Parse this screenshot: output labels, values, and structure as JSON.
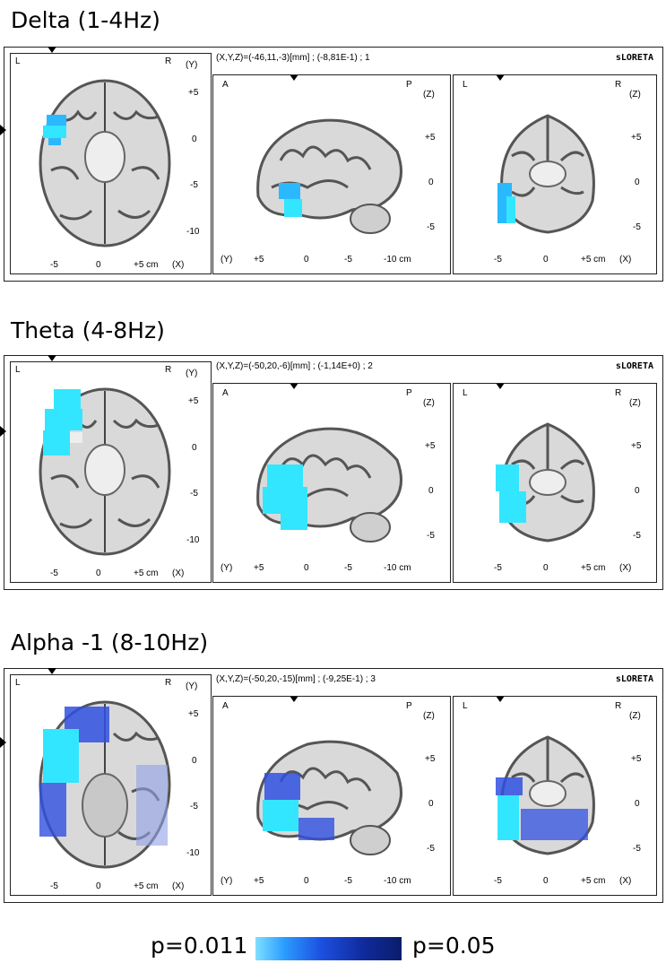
{
  "bands": [
    {
      "title": "Delta (1-4Hz)",
      "info": "(X,Y,Z)=(-46,11,-3)[mm] ; (-8,81E-1) ; 1",
      "brand": "sLORETA",
      "axial": {
        "L": "L",
        "R": "R",
        "axis_y": "(Y)",
        "yticks": [
          "+5",
          "0",
          "-5",
          "-10"
        ],
        "xticks": [
          "-5",
          "0",
          "+5 cm",
          "(X)"
        ]
      },
      "sagittal": {
        "A": "A",
        "P": "P",
        "axis_z": "(Z)",
        "zticks": [
          "+5",
          "0",
          "-5"
        ],
        "xticks": [
          "(Y)",
          "+5",
          "0",
          "-5",
          "-10 cm"
        ]
      },
      "coronal": {
        "L": "L",
        "R": "R",
        "axis_z": "(Z)",
        "zticks": [
          "+5",
          "0",
          "-5"
        ],
        "xticks": [
          "-5",
          "0",
          "+5 cm",
          "(X)"
        ]
      }
    },
    {
      "title": "Theta (4-8Hz)",
      "info": "(X,Y,Z)=(-50,20,-6)[mm] ; (-1,14E+0) ; 2",
      "brand": "sLORETA",
      "axial": {
        "L": "L",
        "R": "R",
        "axis_y": "(Y)",
        "yticks": [
          "+5",
          "0",
          "-5",
          "-10"
        ],
        "xticks": [
          "-5",
          "0",
          "+5 cm",
          "(X)"
        ]
      },
      "sagittal": {
        "A": "A",
        "P": "P",
        "axis_z": "(Z)",
        "zticks": [
          "+5",
          "0",
          "-5"
        ],
        "xticks": [
          "(Y)",
          "+5",
          "0",
          "-5",
          "-10 cm"
        ]
      },
      "coronal": {
        "L": "L",
        "R": "R",
        "axis_z": "(Z)",
        "zticks": [
          "+5",
          "0",
          "-5"
        ],
        "xticks": [
          "-5",
          "0",
          "+5 cm",
          "(X)"
        ]
      }
    },
    {
      "title": "Alpha -1 (8-10Hz)",
      "info": "(X,Y,Z)=(-50,20,-15)[mm] ; (-9,25E-1) ; 3",
      "brand": "sLORETA",
      "axial": {
        "L": "L",
        "R": "R",
        "axis_y": "(Y)",
        "yticks": [
          "+5",
          "0",
          "-5",
          "-10"
        ],
        "xticks": [
          "-5",
          "0",
          "+5 cm",
          "(X)"
        ]
      },
      "sagittal": {
        "A": "A",
        "P": "P",
        "axis_z": "(Z)",
        "zticks": [
          "+5",
          "0",
          "-5"
        ],
        "xticks": [
          "(Y)",
          "+5",
          "0",
          "-5",
          "-10 cm"
        ]
      },
      "coronal": {
        "L": "L",
        "R": "R",
        "axis_z": "(Z)",
        "zticks": [
          "+5",
          "0",
          "-5"
        ],
        "xticks": [
          "-5",
          "0",
          "+5 cm",
          "(X)"
        ]
      }
    }
  ],
  "legend": {
    "low": "p=0.011",
    "high": "p=0.05",
    "colors": [
      "#7fdfff",
      "#2a9bff",
      "#1d4fe0",
      "#0f2a9a",
      "#0a1d6b"
    ]
  },
  "colors": {
    "activation_cyan": "#33e6ff",
    "activation_blue": "#3050e0",
    "frame": "#222222"
  }
}
